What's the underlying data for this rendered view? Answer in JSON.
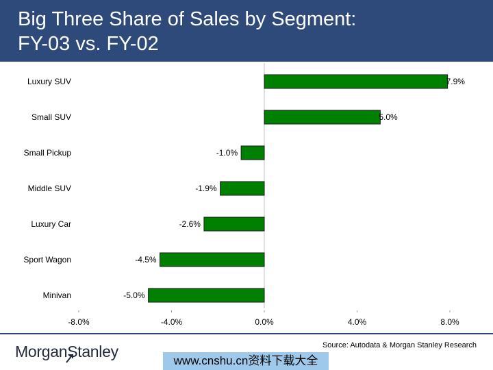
{
  "header": {
    "title_line1": "Big Three Share of Sales by Segment:",
    "title_line2": "FY-03 vs. FY-02",
    "bg_color": "#2e4a7b"
  },
  "chart_data": {
    "type": "bar",
    "orientation": "horizontal",
    "categories": [
      "Luxury SUV",
      "Small SUV",
      "Small Pickup",
      "Middle SUV",
      "Luxury Car",
      "Sport Wagon",
      "Minivan"
    ],
    "values": [
      7.9,
      5.0,
      -1.0,
      -1.9,
      -2.6,
      -4.5,
      -5.0
    ],
    "data_labels": [
      "7.9%",
      "5.0%",
      "-1.0%",
      "-1.9%",
      "-2.6%",
      "-4.5%",
      "-5.0%"
    ],
    "xlim": [
      -8.0,
      8.0
    ],
    "xticks": [
      -8.0,
      -4.0,
      0.0,
      4.0,
      8.0
    ],
    "xtick_labels": [
      "-8.0%",
      "-4.0%",
      "0.0%",
      "4.0%",
      "8.0%"
    ],
    "bar_color": "#008000",
    "grid": false,
    "legend": "none"
  },
  "footer": {
    "source": "Source: Autodata & Morgan Stanley Research",
    "logo_text": "Morgan Stanley",
    "watermark": "www.cnshu.cn资料下载大全"
  }
}
